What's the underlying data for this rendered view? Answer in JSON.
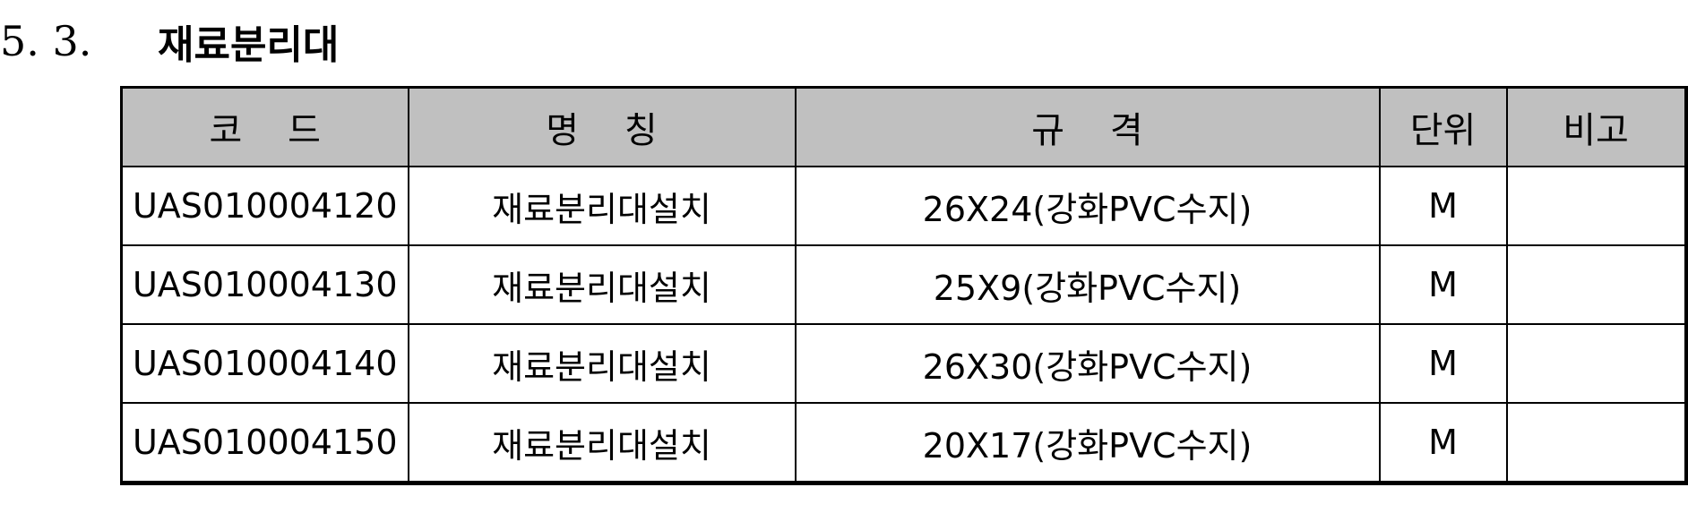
{
  "section": {
    "number": "5. 3.",
    "title": "재료분리대"
  },
  "table": {
    "headers": [
      "코    드",
      "명    칭",
      "규    격",
      "단위",
      "비고"
    ],
    "rows": [
      [
        "UAS010004120",
        "재료분리대설치",
        "26X24(강화PVC수지)",
        "M",
        ""
      ],
      [
        "UAS010004130",
        "재료분리대설치",
        "25X9(강화PVC수지)",
        "M",
        ""
      ],
      [
        "UAS010004140",
        "재료분리대설치",
        "26X30(강화PVC수지)",
        "M",
        ""
      ],
      [
        "UAS010004150",
        "재료분리대설치",
        "20X17(강화PVC수지)",
        "M",
        ""
      ]
    ]
  }
}
